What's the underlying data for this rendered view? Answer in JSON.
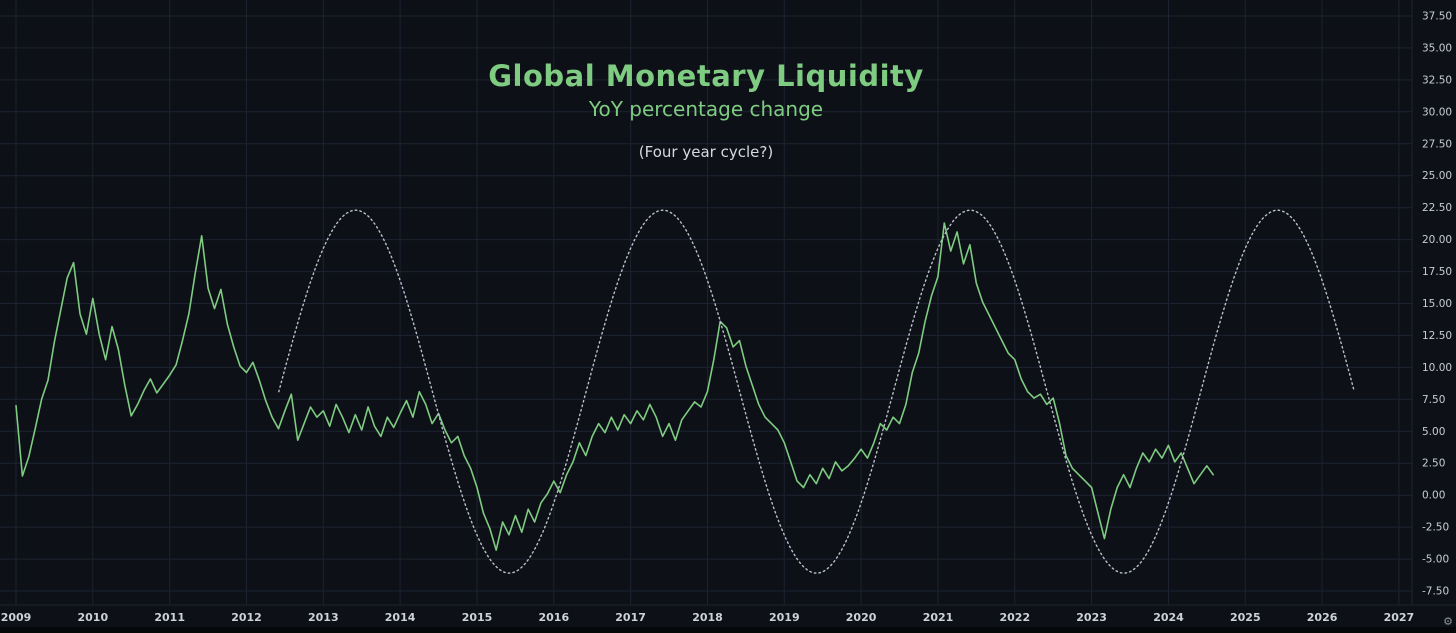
{
  "titles": {
    "main": "Global Monetary Liquidity",
    "subtitle": "YoY percentage change",
    "annotation": "(Four year cycle?)"
  },
  "colors": {
    "background": "#0d1117",
    "grid": "#1c2230",
    "separator": "#1f2430",
    "series_green": "#7ecb81",
    "cycle_gray": "#bcc0ca",
    "axis_text_y": "#c8ccd5",
    "axis_text_x": "#cdd1da",
    "title_green": "#7ecb81",
    "annotation_text": "#d6d9e0"
  },
  "axis_ui": {
    "settings_icon": "⚙"
  },
  "chart_data": {
    "type": "line",
    "title": "Global Monetary Liquidity",
    "subtitle": "YoY percentage change",
    "annotation": "(Four year cycle?)",
    "grid": true,
    "legend": "none",
    "x_axis": {
      "labels": [
        "2009",
        "2010",
        "2011",
        "2012",
        "2013",
        "2014",
        "2015",
        "2016",
        "2017",
        "2018",
        "2019",
        "2020",
        "2021",
        "2022",
        "2023",
        "2024",
        "2025",
        "2026",
        "2027"
      ],
      "range": [
        2009,
        2027
      ]
    },
    "y_axis": {
      "position": "right",
      "min": -7.5,
      "max": 37.5,
      "step": 2.5,
      "tick_labels": [
        "37.50",
        "35.00",
        "32.50",
        "30.00",
        "27.50",
        "25.00",
        "22.50",
        "20.00",
        "17.50",
        "15.00",
        "12.50",
        "10.00",
        "7.50",
        "5.00",
        "2.50",
        "0.00",
        "-2.50",
        "-5.00",
        "-7.50"
      ]
    },
    "series": [
      {
        "name": "global-monetary-liquidity-yoy",
        "style": "solid",
        "color_key": "series_green",
        "x_start": 2009.0,
        "x_step": 0.08333,
        "values": [
          7.0,
          1.5,
          3.0,
          5.2,
          7.5,
          9.0,
          12.0,
          14.5,
          17.0,
          18.2,
          14.2,
          12.6,
          15.4,
          12.6,
          10.6,
          13.2,
          11.4,
          8.6,
          6.2,
          7.1,
          8.2,
          9.1,
          8.0,
          8.7,
          9.4,
          10.2,
          12.1,
          14.2,
          17.4,
          20.3,
          16.2,
          14.6,
          16.1,
          13.4,
          11.6,
          10.1,
          9.6,
          10.4,
          9.0,
          7.4,
          6.1,
          5.2,
          6.6,
          7.9,
          4.3,
          5.6,
          6.9,
          6.1,
          6.6,
          5.4,
          7.1,
          6.1,
          4.9,
          6.3,
          5.1,
          6.9,
          5.4,
          4.6,
          6.1,
          5.3,
          6.4,
          7.4,
          6.1,
          8.1,
          7.1,
          5.6,
          6.4,
          5.1,
          4.1,
          4.6,
          3.1,
          2.1,
          0.6,
          -1.4,
          -2.6,
          -4.3,
          -2.1,
          -3.1,
          -1.6,
          -2.9,
          -1.1,
          -2.1,
          -0.6,
          0.1,
          1.1,
          0.2,
          1.6,
          2.6,
          4.1,
          3.1,
          4.6,
          5.6,
          4.9,
          6.1,
          5.1,
          6.3,
          5.6,
          6.6,
          5.9,
          7.1,
          6.1,
          4.6,
          5.6,
          4.3,
          5.9,
          6.6,
          7.3,
          6.9,
          8.1,
          10.6,
          13.6,
          13.1,
          11.6,
          12.1,
          10.1,
          8.6,
          7.1,
          6.1,
          5.6,
          5.1,
          4.1,
          2.6,
          1.1,
          0.6,
          1.6,
          0.9,
          2.1,
          1.3,
          2.6,
          1.9,
          2.3,
          2.9,
          3.6,
          2.9,
          4.1,
          5.6,
          5.1,
          6.1,
          5.6,
          7.1,
          9.6,
          11.1,
          13.6,
          15.6,
          17.1,
          21.3,
          19.1,
          20.6,
          18.1,
          19.6,
          16.6,
          15.1,
          14.1,
          13.1,
          12.1,
          11.1,
          10.6,
          9.1,
          8.1,
          7.6,
          7.9,
          7.1,
          7.6,
          5.6,
          3.1,
          2.1,
          1.6,
          1.1,
          0.6,
          -1.4,
          -3.4,
          -1.1,
          0.6,
          1.6,
          0.6,
          2.1,
          3.3,
          2.6,
          3.6,
          2.9,
          3.9,
          2.6,
          3.3,
          2.1,
          0.9,
          1.6,
          2.3,
          1.6
        ]
      },
      {
        "name": "four-year-cycle",
        "style": "dotted",
        "color_key": "cycle_gray",
        "model": {
          "type": "cosine",
          "midline": 8.1,
          "amplitude": 14.2,
          "period": 4,
          "peak_x": 2013.42,
          "x_start": 2012.42,
          "x_end": 2026.42
        }
      }
    ]
  }
}
